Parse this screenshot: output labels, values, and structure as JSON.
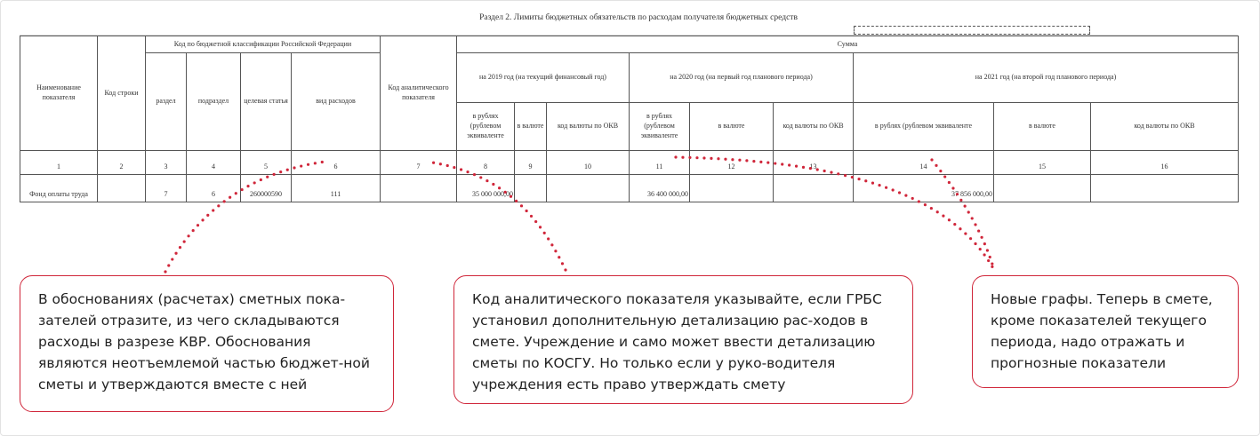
{
  "section_title": "Раздел 2. Лимиты бюджетных обязательств по расходам получателя бюджетных средств",
  "headers": {
    "name": "Наименование показателя",
    "line_code": "Код строки",
    "kbk": "Код по бюджетной классификации Российской Федерации",
    "razdel": "раздел",
    "podrazdel": "подраздел",
    "target": "целевая статья",
    "vid": "вид расходов",
    "analytic": "Код аналитического показателя",
    "sum": "Сумма",
    "y2019": "на 2019 год (на текущий финансовый год)",
    "y2020": "на 2020 год (на первый год планового периода)",
    "y2021": "на 2021 год (на второй год планового периода)",
    "rub": "в рублях (рублевом эквиваленте",
    "cur": "в валюте",
    "okv": "код валюты по ОКВ"
  },
  "col_numbers": [
    "1",
    "2",
    "3",
    "4",
    "5",
    "6",
    "7",
    "8",
    "9",
    "10",
    "11",
    "12",
    "13",
    "14",
    "15",
    "16"
  ],
  "row": {
    "name": "Фонд оплаты труда",
    "code": "",
    "razdel": "7",
    "podrazdel": "6",
    "target": "260000590",
    "vid": "111",
    "analytic": "",
    "r2019": "35 000 000,00",
    "c2019": "",
    "o2019": "",
    "r2020": "36 400 000,00",
    "c2020": "",
    "o2020": "",
    "r2021": "37 856 000,00",
    "c2021": "",
    "o2021": ""
  },
  "callouts": [
    "В обоснованиях (расчетах) сметных пока-зателей отразите, из чего складываются расходы в разрезе КВР. Обоснования являются неотъемлемой частью бюджет-ной сметы и утверждаются вместе с ней",
    "Код аналитического показателя указывайте, если ГРБС установил дополнительную детализацию рас-ходов в смете. Учреждение и само может ввести детализацию сметы по КОСГУ. Но только если у руко-водителя учреждения есть право утверждать смету",
    "Новые графы. Теперь в смете, кроме показателей текущего периода, надо отражать и прогнозные показатели"
  ],
  "colors": {
    "accent": "#d0263a"
  }
}
